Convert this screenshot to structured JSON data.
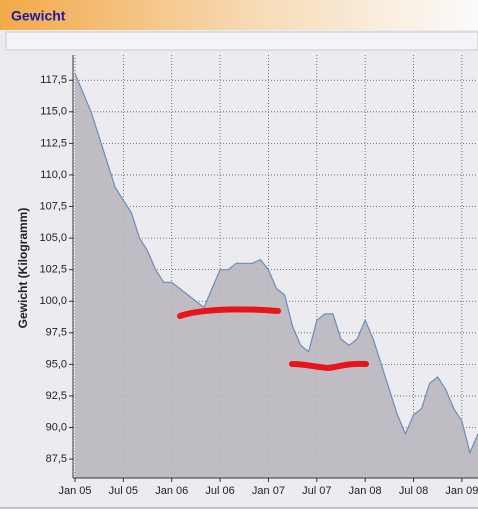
{
  "header": {
    "title": "Gewicht"
  },
  "chart_data": {
    "type": "area",
    "y_label": "Gewicht (Kilogramm)",
    "x": [
      "2005-01",
      "2005-02",
      "2005-03",
      "2005-04",
      "2005-05",
      "2005-06",
      "2005-07",
      "2005-08",
      "2005-09",
      "2005-10",
      "2005-11",
      "2005-12",
      "2006-01",
      "2006-02",
      "2006-03",
      "2006-04",
      "2006-05",
      "2006-06",
      "2006-07",
      "2006-08",
      "2006-09",
      "2006-10",
      "2006-11",
      "2006-12",
      "2007-01",
      "2007-02",
      "2007-03",
      "2007-04",
      "2007-05",
      "2007-06",
      "2007-07",
      "2007-08",
      "2007-09",
      "2007-10",
      "2007-11",
      "2007-12",
      "2008-01",
      "2008-02",
      "2008-03",
      "2008-04",
      "2008-05",
      "2008-06",
      "2008-07",
      "2008-08",
      "2008-09",
      "2008-10",
      "2008-11",
      "2008-12",
      "2009-01",
      "2009-02",
      "2009-03"
    ],
    "values": [
      118,
      116.5,
      115,
      113,
      111,
      109,
      108,
      107,
      105,
      104,
      102.5,
      101.5,
      101.5,
      101,
      100.5,
      100,
      99.5,
      101,
      102.5,
      102.5,
      103,
      103,
      103,
      103.3,
      102.5,
      101,
      100.5,
      98,
      96.5,
      96,
      98.5,
      99,
      99,
      97,
      96.5,
      97,
      98.5,
      97,
      95,
      93,
      91,
      89.5,
      91,
      91.5,
      93.5,
      94,
      93,
      91.5,
      90.5,
      88,
      89.5
    ],
    "color": "#bab8be",
    "line_color": "#6d8cb8",
    "xlim": [
      "2005-01",
      "2009-03"
    ],
    "ylim": [
      86,
      119.5
    ],
    "xticks": [
      {
        "value": "2005-01",
        "label": "Jan 05"
      },
      {
        "value": "2005-07",
        "label": "Jul 05"
      },
      {
        "value": "2006-01",
        "label": "Jan 06"
      },
      {
        "value": "2006-07",
        "label": "Jul 06"
      },
      {
        "value": "2007-01",
        "label": "Jan 07"
      },
      {
        "value": "2007-07",
        "label": "Jul 07"
      },
      {
        "value": "2008-01",
        "label": "Jan 08"
      },
      {
        "value": "2008-07",
        "label": "Jul 08"
      },
      {
        "value": "2009-01",
        "label": "Jan 09"
      }
    ],
    "yticks": [
      {
        "value": 87.5,
        "label": "87,5"
      },
      {
        "value": 90,
        "label": "90,0"
      },
      {
        "value": 92.5,
        "label": "92,5"
      },
      {
        "value": 95,
        "label": "95,0"
      },
      {
        "value": 97.5,
        "label": "97,5"
      },
      {
        "value": 100,
        "label": "100,0"
      },
      {
        "value": 102.5,
        "label": "102,5"
      },
      {
        "value": 105,
        "label": "105,0"
      },
      {
        "value": 107.5,
        "label": "107,5"
      },
      {
        "value": 110,
        "label": "110,0"
      },
      {
        "value": 112.5,
        "label": "112,5"
      },
      {
        "value": 115,
        "label": "115,0"
      },
      {
        "value": 117.5,
        "label": "117,5"
      }
    ],
    "grid": true
  }
}
